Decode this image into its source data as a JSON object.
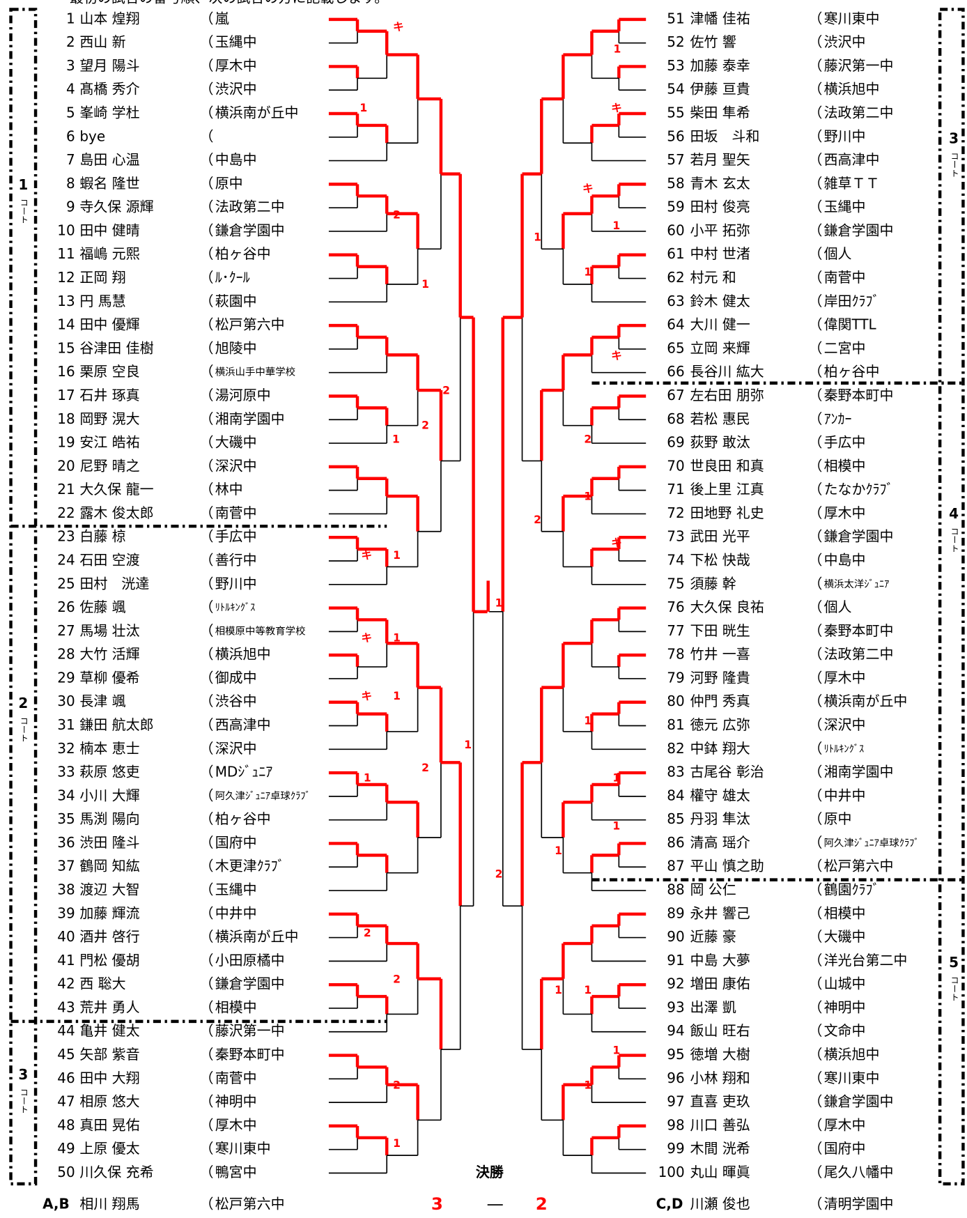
{
  "header_note": "最初の試合の番号順、次の試合の方に記載します。",
  "paren": "（",
  "left_players": [
    [
      1,
      "山本 煌翔",
      "嵐"
    ],
    [
      2,
      "西山 新",
      "玉縄中"
    ],
    [
      3,
      "望月 陽斗",
      "厚木中"
    ],
    [
      4,
      "髙橋 秀介",
      "渋沢中"
    ],
    [
      5,
      "峯崎 学杜",
      "横浜南が丘中"
    ],
    [
      6,
      "bye"
    ],
    [
      7,
      "島田 心温",
      "中島中"
    ],
    [
      8,
      "蝦名 隆世",
      "原中"
    ],
    [
      9,
      "寺久保 源輝",
      "法政第二中"
    ],
    [
      10,
      "田中 健晴",
      "鎌倉学園中"
    ],
    [
      11,
      "福嶋 元熙",
      "柏ヶ谷中"
    ],
    [
      12,
      "正岡 翔",
      "ﾙ･ｸｰﾙ"
    ],
    [
      13,
      "円 馬慧",
      "萩園中"
    ],
    [
      14,
      "田中 優輝",
      "松戸第六中"
    ],
    [
      15,
      "谷津田 佳樹",
      "旭陵中"
    ],
    [
      16,
      "栗原 空良",
      "横浜山手中華学校"
    ],
    [
      17,
      "石井 琢真",
      "湯河原中"
    ],
    [
      18,
      "岡野 滉大",
      "湘南学園中"
    ],
    [
      19,
      "安江 皓祐",
      "大磯中"
    ],
    [
      20,
      "尼野 晴之",
      "深沢中"
    ],
    [
      21,
      "大久保 龍一",
      "林中"
    ],
    [
      22,
      "露木 俊太郎",
      "南菅中"
    ],
    [
      23,
      "白藤 椋",
      "手広中"
    ],
    [
      24,
      "石田 空渡",
      "善行中"
    ],
    [
      25,
      "田村　洸達",
      "野川中"
    ],
    [
      26,
      "佐藤 颯",
      "ﾘﾄﾙｷﾝｸﾞｽ"
    ],
    [
      27,
      "馬場 壮汰",
      "相模原中等教育学校"
    ],
    [
      28,
      "大竹 活輝",
      "横浜旭中"
    ],
    [
      29,
      "草柳 優希",
      "御成中"
    ],
    [
      30,
      "長津 颯",
      "渋谷中"
    ],
    [
      31,
      "鎌田 航太郎",
      "西高津中"
    ],
    [
      32,
      "楠本 恵士",
      "深沢中"
    ],
    [
      33,
      "萩原 悠吏",
      "MDｼﾞｭﾆｱ"
    ],
    [
      34,
      "小川 大輝",
      "阿久津ｼﾞｭﾆｱ卓球ｸﾗﾌﾞ"
    ],
    [
      35,
      "馬渕 陽向",
      "柏ヶ谷中"
    ],
    [
      36,
      "渋田 隆斗",
      "国府中"
    ],
    [
      37,
      "鶴岡 知紘",
      "木更津ｸﾗﾌﾞ"
    ],
    [
      38,
      "渡辺 大智",
      "玉縄中"
    ],
    [
      39,
      "加藤 輝流",
      "中井中"
    ],
    [
      40,
      "酒井 啓行",
      "横浜南が丘中"
    ],
    [
      41,
      "門松 優胡",
      "小田原橘中"
    ],
    [
      42,
      "西 聡大",
      "鎌倉学園中"
    ],
    [
      43,
      "荒井 勇人",
      "相模中"
    ],
    [
      44,
      "亀井 健太",
      "藤沢第一中"
    ],
    [
      45,
      "矢部 紫音",
      "秦野本町中"
    ],
    [
      46,
      "田中 大翔",
      "南菅中"
    ],
    [
      47,
      "相原 悠大",
      "神明中"
    ],
    [
      48,
      "真田 晃佑",
      "厚木中"
    ],
    [
      49,
      "上原 優太",
      "寒川東中"
    ],
    [
      50,
      "川久保 充希",
      "鴨宮中"
    ]
  ],
  "right_players": [
    [
      51,
      "津幡 佳祐",
      "寒川東中"
    ],
    [
      52,
      "佐竹 響",
      "渋沢中"
    ],
    [
      53,
      "加藤 泰幸",
      "藤沢第一中"
    ],
    [
      54,
      "伊藤 亘貴",
      "横浜旭中"
    ],
    [
      55,
      "柴田 隼希",
      "法政第二中"
    ],
    [
      56,
      "田坂　斗和",
      "野川中"
    ],
    [
      57,
      "若月 聖矢",
      "西高津中"
    ],
    [
      58,
      "青木 玄太",
      "雑草ＴＴ"
    ],
    [
      59,
      "田村 俊亮",
      "玉縄中"
    ],
    [
      60,
      "小平 拓弥",
      "鎌倉学園中"
    ],
    [
      61,
      "中村 世渚",
      "個人"
    ],
    [
      62,
      "村元 和",
      "南菅中"
    ],
    [
      63,
      "鈴木 健太",
      "岸田ｸﾗﾌﾞ"
    ],
    [
      64,
      "大川 健一",
      "偉関TTL"
    ],
    [
      65,
      "立岡 来輝",
      "二宮中"
    ],
    [
      66,
      "長谷川 紘大",
      "柏ヶ谷中"
    ],
    [
      67,
      "左右田 朋弥",
      "秦野本町中"
    ],
    [
      68,
      "若松 惠民",
      "ｱﾝｶｰ"
    ],
    [
      69,
      "荻野 敢汰",
      "手広中"
    ],
    [
      70,
      "世良田 和真",
      "相模中"
    ],
    [
      71,
      "後上里 江真",
      "たなかｸﾗﾌﾞ"
    ],
    [
      72,
      "田地野 礼史",
      "厚木中"
    ],
    [
      73,
      "武田 光平",
      "鎌倉学園中"
    ],
    [
      74,
      "下松 快哉",
      "中島中"
    ],
    [
      75,
      "須藤 幹",
      "横浜太洋ｼﾞｭﾆｱ"
    ],
    [
      76,
      "大久保 良祐",
      "個人"
    ],
    [
      77,
      "下田 晄生",
      "秦野本町中"
    ],
    [
      78,
      "竹井 一喜",
      "法政第二中"
    ],
    [
      79,
      "河野 隆貴",
      "厚木中"
    ],
    [
      80,
      "仲門 秀真",
      "横浜南が丘中"
    ],
    [
      81,
      "徳元 広弥",
      "深沢中"
    ],
    [
      82,
      "中鉢 翔大",
      "ﾘﾄﾙｷﾝｸﾞｽ"
    ],
    [
      83,
      "古尾谷 彰治",
      "湘南学園中"
    ],
    [
      84,
      "權守 雄太",
      "中井中"
    ],
    [
      85,
      "丹羽 隼汰",
      "原中"
    ],
    [
      86,
      "清高 瑶介",
      "阿久津ｼﾞｭﾆｱ卓球ｸﾗﾌﾞ"
    ],
    [
      87,
      "平山 慎之助",
      "松戸第六中"
    ],
    [
      88,
      "岡 公仁",
      "鶴園ｸﾗﾌﾞ"
    ],
    [
      89,
      "永井 響己",
      "相模中"
    ],
    [
      90,
      "近藤 豪",
      "大磯中"
    ],
    [
      91,
      "中島 大夢",
      "洋光台第二中"
    ],
    [
      92,
      "増田 康佑",
      "山城中"
    ],
    [
      93,
      "出澤 凱",
      "神明中"
    ],
    [
      94,
      "飯山 旺右",
      "文命中"
    ],
    [
      95,
      "徳増 大樹",
      "横浜旭中"
    ],
    [
      96,
      "小林 翔和",
      "寒川東中"
    ],
    [
      97,
      "直喜 吏玖",
      "鎌倉学園中"
    ],
    [
      98,
      "川口 善弘",
      "厚木中"
    ],
    [
      99,
      "木間 洸希",
      "国府中"
    ],
    [
      100,
      "丸山 暉眞",
      "尾久八幡中"
    ]
  ],
  "courts_left": [
    [
      1,
      "コート"
    ],
    [
      2,
      "コート"
    ],
    [
      3,
      "コート"
    ]
  ],
  "courts_right": [
    [
      3,
      "コート"
    ],
    [
      4,
      "コート"
    ],
    [
      5,
      "コート"
    ]
  ],
  "result_marks": [
    "キ",
    "1",
    "2",
    "1",
    "2",
    "2",
    "1",
    "キ",
    "1",
    "キ",
    "1",
    "キ",
    "1",
    "1",
    "2",
    "1",
    "2",
    "2",
    "2",
    "1",
    "1",
    "2",
    "1",
    "キ",
    "キ",
    "1",
    "1",
    "1",
    "キ",
    "2",
    "1",
    "2",
    "キ",
    "1",
    "1",
    "1",
    "1",
    "1",
    "1",
    "1",
    "1"
  ],
  "final": {
    "title": "決勝",
    "score_left": 3,
    "dash": "—",
    "score_right": 2,
    "left": {
      "slot": "A,B",
      "name": "相川 翔馬",
      "team": "松戸第六中"
    },
    "right": {
      "slot": "C,D",
      "name": "川瀬 俊也",
      "team": "清明学園中"
    }
  }
}
